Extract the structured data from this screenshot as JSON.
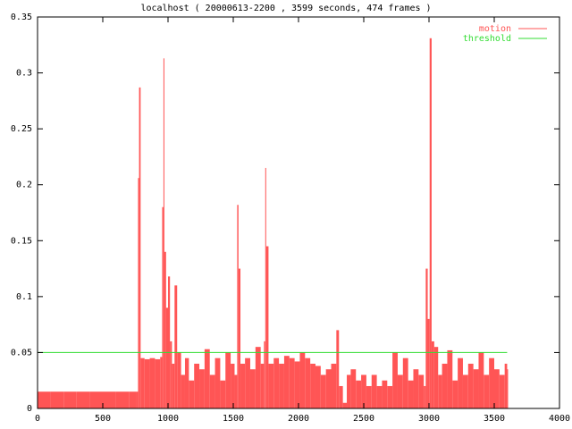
{
  "chart_data": {
    "type": "impulse",
    "title": "localhost ( 20000613-2200 , 3599 seconds, 474 frames )",
    "xlim": [
      0,
      4000
    ],
    "xticks": [
      0,
      500,
      1000,
      1500,
      2000,
      2500,
      3000,
      3500,
      4000
    ],
    "ylim": [
      0,
      0.35
    ],
    "yticks": [
      0,
      0.05,
      0.1,
      0.15,
      0.2,
      0.25,
      0.3,
      0.35
    ],
    "grid": false,
    "legend": "top-right",
    "series": [
      {
        "name": "motion",
        "color": "#ff5555",
        "x": [
          0,
          100,
          200,
          300,
          400,
          500,
          600,
          700,
          760,
          770,
          778,
          790,
          820,
          860,
          900,
          940,
          955,
          965,
          972,
          985,
          1000,
          1015,
          1030,
          1050,
          1070,
          1100,
          1130,
          1160,
          1200,
          1240,
          1280,
          1320,
          1360,
          1400,
          1440,
          1480,
          1510,
          1530,
          1540,
          1555,
          1590,
          1630,
          1670,
          1710,
          1735,
          1745,
          1752,
          1770,
          1810,
          1850,
          1890,
          1930,
          1970,
          2010,
          2050,
          2090,
          2130,
          2170,
          2210,
          2250,
          2290,
          2310,
          2340,
          2370,
          2400,
          2440,
          2480,
          2520,
          2560,
          2600,
          2640,
          2680,
          2720,
          2760,
          2800,
          2840,
          2880,
          2920,
          2960,
          2975,
          2990,
          3005,
          3020,
          3040,
          3070,
          3100,
          3140,
          3180,
          3220,
          3260,
          3300,
          3340,
          3380,
          3420,
          3460,
          3500,
          3540,
          3580,
          3599
        ],
        "values": [
          0.015,
          0.015,
          0.015,
          0.015,
          0.015,
          0.015,
          0.015,
          0.015,
          0.015,
          0.206,
          0.287,
          0.045,
          0.044,
          0.045,
          0.044,
          0.046,
          0.18,
          0.313,
          0.14,
          0.09,
          0.118,
          0.06,
          0.04,
          0.11,
          0.05,
          0.03,
          0.045,
          0.025,
          0.04,
          0.035,
          0.053,
          0.03,
          0.045,
          0.025,
          0.05,
          0.04,
          0.03,
          0.182,
          0.125,
          0.04,
          0.045,
          0.035,
          0.055,
          0.04,
          0.06,
          0.215,
          0.145,
          0.04,
          0.045,
          0.04,
          0.047,
          0.045,
          0.042,
          0.05,
          0.045,
          0.04,
          0.038,
          0.03,
          0.035,
          0.04,
          0.07,
          0.02,
          0.005,
          0.03,
          0.035,
          0.025,
          0.03,
          0.02,
          0.03,
          0.02,
          0.025,
          0.02,
          0.05,
          0.03,
          0.045,
          0.025,
          0.035,
          0.03,
          0.02,
          0.125,
          0.08,
          0.331,
          0.06,
          0.055,
          0.03,
          0.04,
          0.052,
          0.025,
          0.045,
          0.03,
          0.04,
          0.035,
          0.05,
          0.03,
          0.045,
          0.035,
          0.03,
          0.04,
          0.035
        ]
      },
      {
        "name": "threshold",
        "color": "#33dd33",
        "x": [
          0,
          3599
        ],
        "values": [
          0.05,
          0.05
        ]
      }
    ]
  }
}
